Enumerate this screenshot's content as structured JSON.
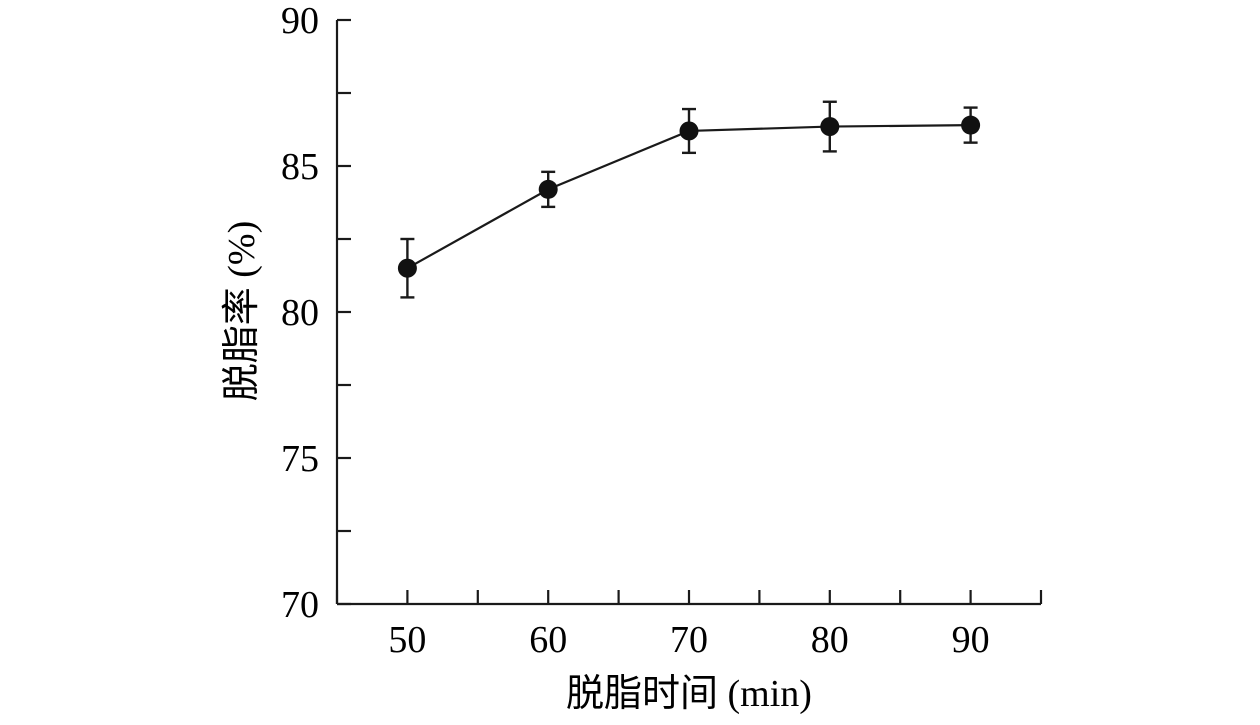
{
  "chart_data": {
    "type": "line",
    "title": "",
    "xlabel": "脱脂时间 (min)",
    "ylabel": "脱脂率 (%)",
    "x": [
      50,
      60,
      70,
      80,
      90
    ],
    "x_ticks": [
      50,
      60,
      70,
      80,
      90
    ],
    "xlim": [
      45,
      95
    ],
    "y_ticks": [
      70,
      75,
      80,
      85,
      90
    ],
    "ylim": [
      70,
      90
    ],
    "series": [
      {
        "values": [
          81.5,
          84.2,
          86.2,
          86.35,
          86.4
        ],
        "error": [
          1.0,
          0.6,
          0.75,
          0.85,
          0.6
        ]
      }
    ],
    "grid": false,
    "legend": "none",
    "colors": {
      "line": "#1a1a1a",
      "marker": "#111111",
      "axis": "#1a1a1a"
    }
  }
}
